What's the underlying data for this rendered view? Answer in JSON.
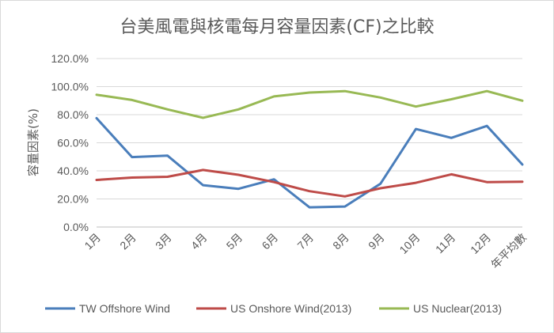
{
  "chart_data": {
    "type": "line",
    "title": "台美風電與核電每月容量因素(CF)之比較",
    "xlabel": "",
    "ylabel": "容量因素(%)",
    "categories": [
      "1月",
      "2月",
      "3月",
      "4月",
      "5月",
      "6月",
      "7月",
      "8月",
      "9月",
      "10月",
      "11月",
      "12月",
      "年平均數"
    ],
    "ylim": [
      0,
      120
    ],
    "yticks": [
      0,
      20,
      40,
      60,
      80,
      100,
      120
    ],
    "ytick_labels": [
      "0.0%",
      "20.0%",
      "40.0%",
      "60.0%",
      "80.0%",
      "100.0%",
      "120.0%"
    ],
    "grid": true,
    "legend": "bottom",
    "series": [
      {
        "name": "TW Offshore Wind",
        "color": "#4a7ebb",
        "values": [
          77.5,
          49.8,
          50.8,
          29.8,
          27.2,
          34.0,
          14.0,
          14.6,
          30.8,
          69.8,
          63.5,
          72.0,
          44.5
        ]
      },
      {
        "name": "US Onshore Wind(2013)",
        "color": "#be4b48",
        "values": [
          33.5,
          35.2,
          35.8,
          40.6,
          37.2,
          32.0,
          25.5,
          21.8,
          27.6,
          31.5,
          37.5,
          32.0,
          32.3
        ]
      },
      {
        "name": "US Nuclear(2013)",
        "color": "#98b954",
        "values": [
          94.2,
          90.5,
          83.8,
          77.8,
          83.8,
          93.0,
          95.8,
          96.8,
          92.2,
          85.8,
          91.0,
          96.8,
          90.0
        ]
      }
    ]
  }
}
